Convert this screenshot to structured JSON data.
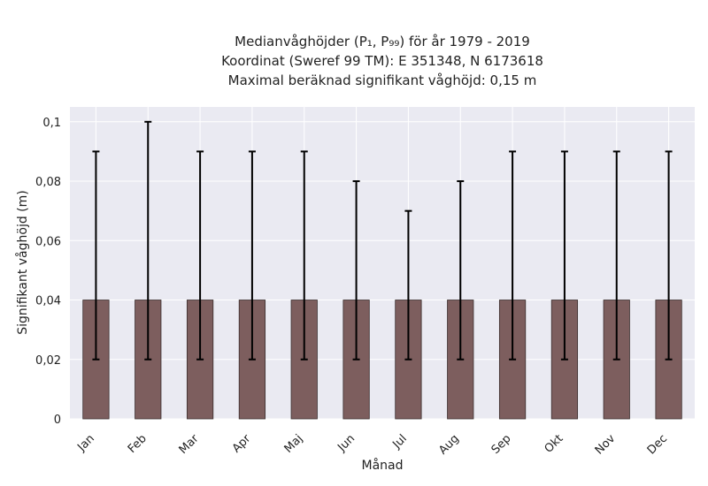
{
  "chart_data": {
    "type": "bar",
    "title_lines": [
      "Medianvåghöjder (P₁, P₉₉) för år 1979 - 2019",
      "Koordinat (Sweref 99 TM): E 351348, N 6173618",
      "Maximal beräknad signifikant våghöjd: 0,15 m"
    ],
    "xlabel": "Månad",
    "ylabel": "Signifikant våghöjd (m)",
    "categories": [
      "Jan",
      "Feb",
      "Mar",
      "Apr",
      "Maj",
      "Jun",
      "Jul",
      "Aug",
      "Sep",
      "Okt",
      "Nov",
      "Dec"
    ],
    "values": [
      0.04,
      0.04,
      0.04,
      0.04,
      0.04,
      0.04,
      0.04,
      0.04,
      0.04,
      0.04,
      0.04,
      0.04
    ],
    "error_low": [
      0.02,
      0.02,
      0.02,
      0.02,
      0.02,
      0.02,
      0.02,
      0.02,
      0.02,
      0.02,
      0.02,
      0.02
    ],
    "error_high": [
      0.09,
      0.1,
      0.09,
      0.09,
      0.09,
      0.08,
      0.07,
      0.08,
      0.09,
      0.09,
      0.09,
      0.09
    ],
    "yticks": [
      0,
      0.02,
      0.04,
      0.06,
      0.08,
      0.1
    ],
    "ytick_labels": [
      "0",
      "0,02",
      "0,04",
      "0,06",
      "0,08",
      "0,1"
    ],
    "ylim": [
      0,
      0.105
    ],
    "grid": true,
    "colors": {
      "bar": "#7d5e5e",
      "bar_edge": "#3a2e2e",
      "error_bar": "#000000",
      "plot_background": "#eaeaf2",
      "grid": "#ffffff"
    }
  }
}
